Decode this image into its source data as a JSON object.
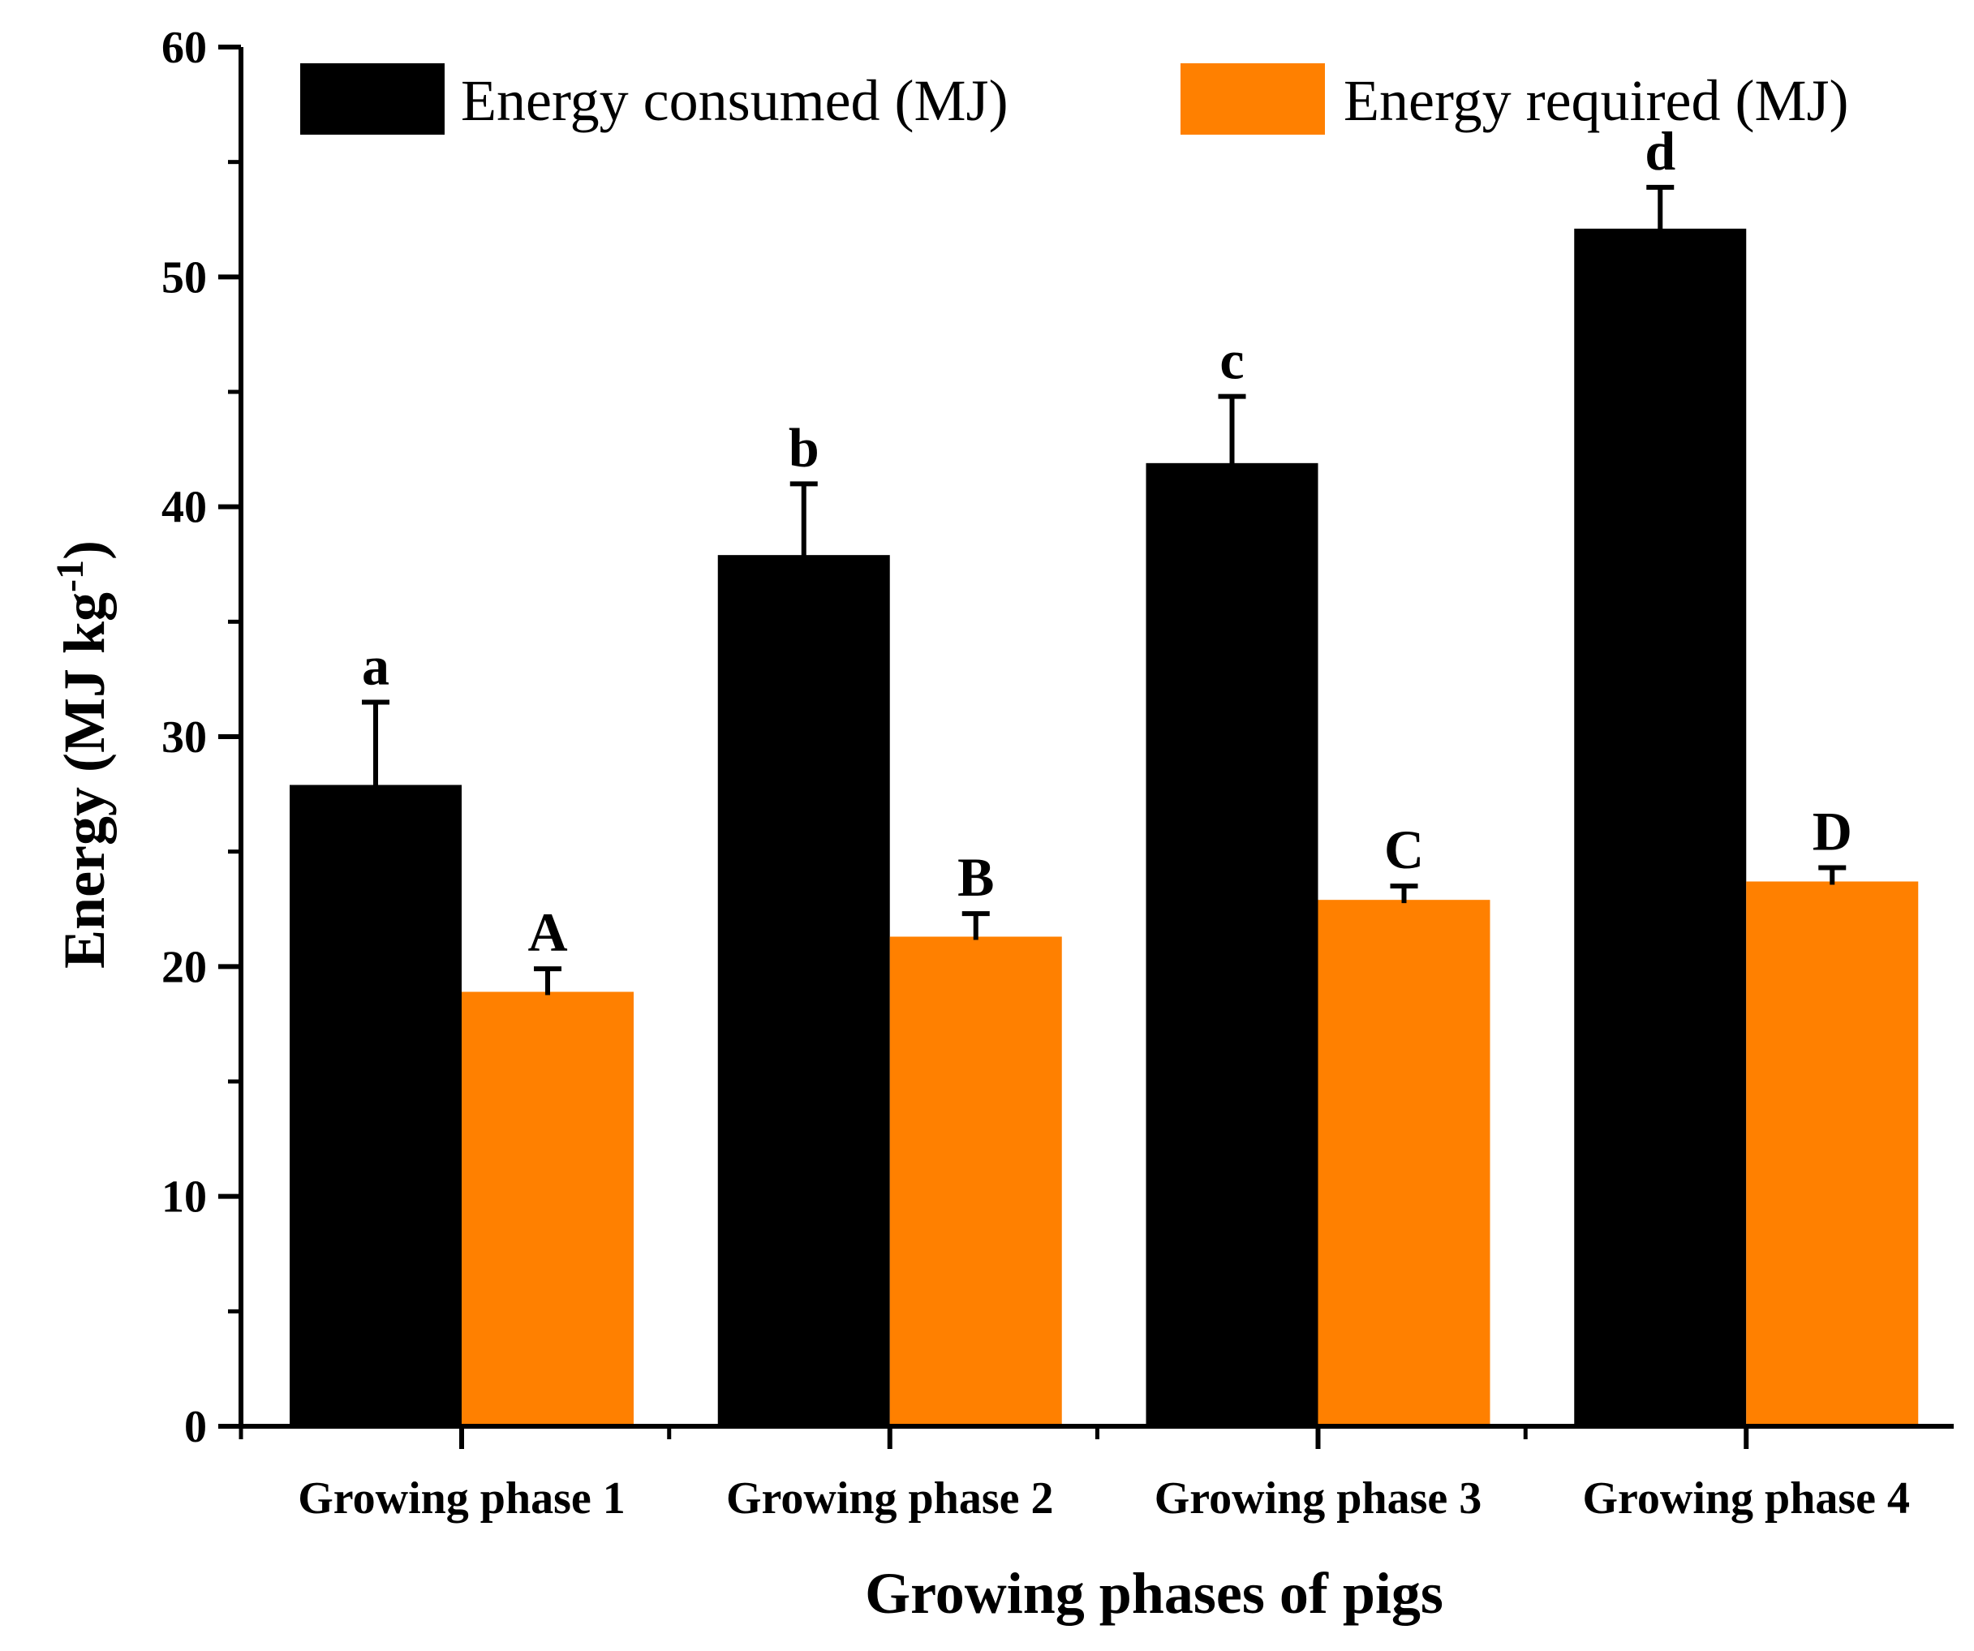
{
  "chart_data": {
    "type": "bar",
    "title": "",
    "xlabel": "Growing phases of pigs",
    "ylabel": {
      "main": "Energy (MJ kg",
      "superscript": "-1",
      "close": ")"
    },
    "ylim": [
      0,
      60
    ],
    "yticks": [
      "0",
      "10",
      "20",
      "30",
      "40",
      "50",
      "60"
    ],
    "categories": [
      "Growing phase 1",
      "Growing phase 2",
      "Growing phase 3",
      "Growing phase 4"
    ],
    "series": [
      {
        "name": "Energy consumed (MJ)",
        "color": "#000000",
        "values": [
          27.9,
          37.9,
          41.9,
          52.1
        ],
        "errors": [
          3.6,
          3.1,
          2.9,
          1.8
        ],
        "significance": [
          "a",
          "b",
          "c",
          "d"
        ]
      },
      {
        "name": "Energy required (MJ)",
        "color": "#ff8000",
        "values": [
          18.9,
          21.3,
          22.9,
          23.7
        ],
        "errors": [
          1.0,
          1.0,
          0.6,
          0.6
        ],
        "significance": [
          "A",
          "B",
          "C",
          "D"
        ]
      }
    ],
    "legend": "top",
    "grid": false
  }
}
